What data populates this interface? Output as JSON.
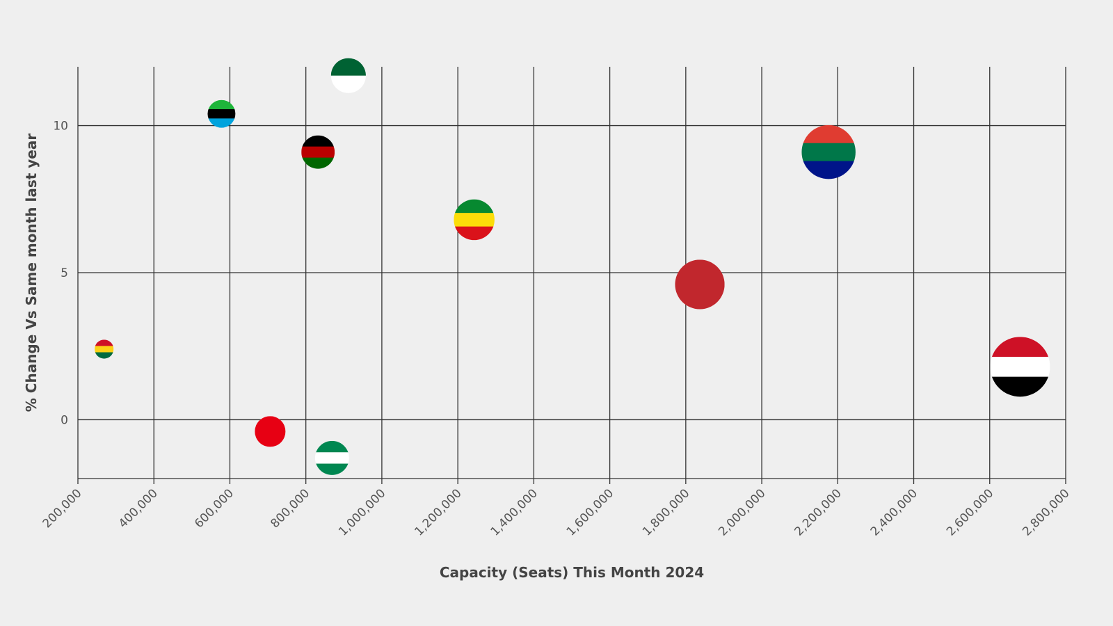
{
  "chart_data": {
    "type": "scatter",
    "xlabel": "Capacity (Seats) This Month 2024",
    "ylabel": "% Change Vs Same month last year",
    "xlim": [
      200000,
      2800000
    ],
    "xticks": [
      {
        "value": 200000,
        "label": "200,000"
      },
      {
        "value": 400000,
        "label": "400,000"
      },
      {
        "value": 600000,
        "label": "600,000"
      },
      {
        "value": 800000,
        "label": "800,000"
      },
      {
        "value": 1000000,
        "label": "1,000,000"
      },
      {
        "value": 1200000,
        "label": "1,200,000"
      },
      {
        "value": 1400000,
        "label": "1,400,000"
      },
      {
        "value": 1600000,
        "label": "1,600,000"
      },
      {
        "value": 1800000,
        "label": "1,800,000"
      },
      {
        "value": 2000000,
        "label": "2,000,000"
      },
      {
        "value": 2200000,
        "label": "2,200,000"
      },
      {
        "value": 2400000,
        "label": "2,400,000"
      },
      {
        "value": 2600000,
        "label": "2,600,000"
      },
      {
        "value": 2800000,
        "label": "2,800,000"
      }
    ],
    "ylim": [
      -2,
      12
    ],
    "yticks": [
      0,
      5,
      10
    ],
    "grid": true,
    "x": [
      269000,
      578000,
      912000,
      832000,
      1243000,
      1837000,
      2176000,
      2680000,
      706000,
      869000
    ],
    "y": [
      2.4,
      10.4,
      11.7,
      9.1,
      6.8,
      4.6,
      9.1,
      1.8,
      -0.4,
      -1.3
    ],
    "colors": [
      [
        "#ce1126",
        "#fcd116",
        "#006b3f"
      ],
      [
        "#1eb53a",
        "#000000",
        "#00a3dd"
      ],
      [
        "#006233",
        "#ffffff"
      ],
      [
        "#000000",
        "#bb0000",
        "#006600"
      ],
      [
        "#078930",
        "#fcdd09",
        "#da121a"
      ],
      [
        "#c1272d"
      ],
      [
        "#e03c31",
        "#007749",
        "#001489"
      ],
      [
        "#ce1126",
        "#ffffff",
        "#000000"
      ],
      [
        "#e70013"
      ],
      [
        "#008751",
        "#ffffff",
        "#008751"
      ]
    ]
  }
}
